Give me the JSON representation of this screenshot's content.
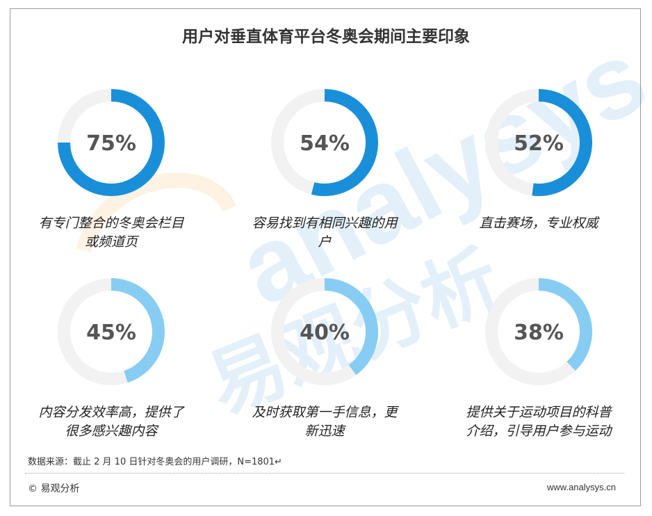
{
  "title": "用户对垂直体育平台冬奥会期间主要印象",
  "chart_data": {
    "type": "donut",
    "items": [
      {
        "value": 75,
        "display": "75%",
        "label_lines": [
          "有专门整合的冬奥会栏目",
          "或频道页"
        ],
        "color": "#1a8fd9"
      },
      {
        "value": 54,
        "display": "54%",
        "label_lines": [
          "容易找到有相同兴趣的用",
          "户"
        ],
        "color": "#1a8fd9"
      },
      {
        "value": 52,
        "display": "52%",
        "label_lines": [
          "直击赛场，专业权威"
        ],
        "color": "#1a8fd9"
      },
      {
        "value": 45,
        "display": "45%",
        "label_lines": [
          "内容分发效率高，提供了",
          "很多感兴趣内容"
        ],
        "color": "#87cdf3"
      },
      {
        "value": 40,
        "display": "40%",
        "label_lines": [
          "及时获取第一手信息，更",
          "新迅速"
        ],
        "color": "#87cdf3"
      },
      {
        "value": 38,
        "display": "38%",
        "label_lines": [
          "提供关于运动项目的科普",
          "介绍，引导用户参与运动"
        ],
        "color": "#87cdf3"
      }
    ],
    "track_color": "#f2f2f2"
  },
  "footer": {
    "source": "数据来源：截止 2 月 10 日针对冬奥会的用户调研，N=1801↵",
    "logo": "© 易观分析",
    "website": "www.analysys.cn"
  },
  "watermark": {
    "latin": "analysys",
    "chinese": "易观分析"
  }
}
